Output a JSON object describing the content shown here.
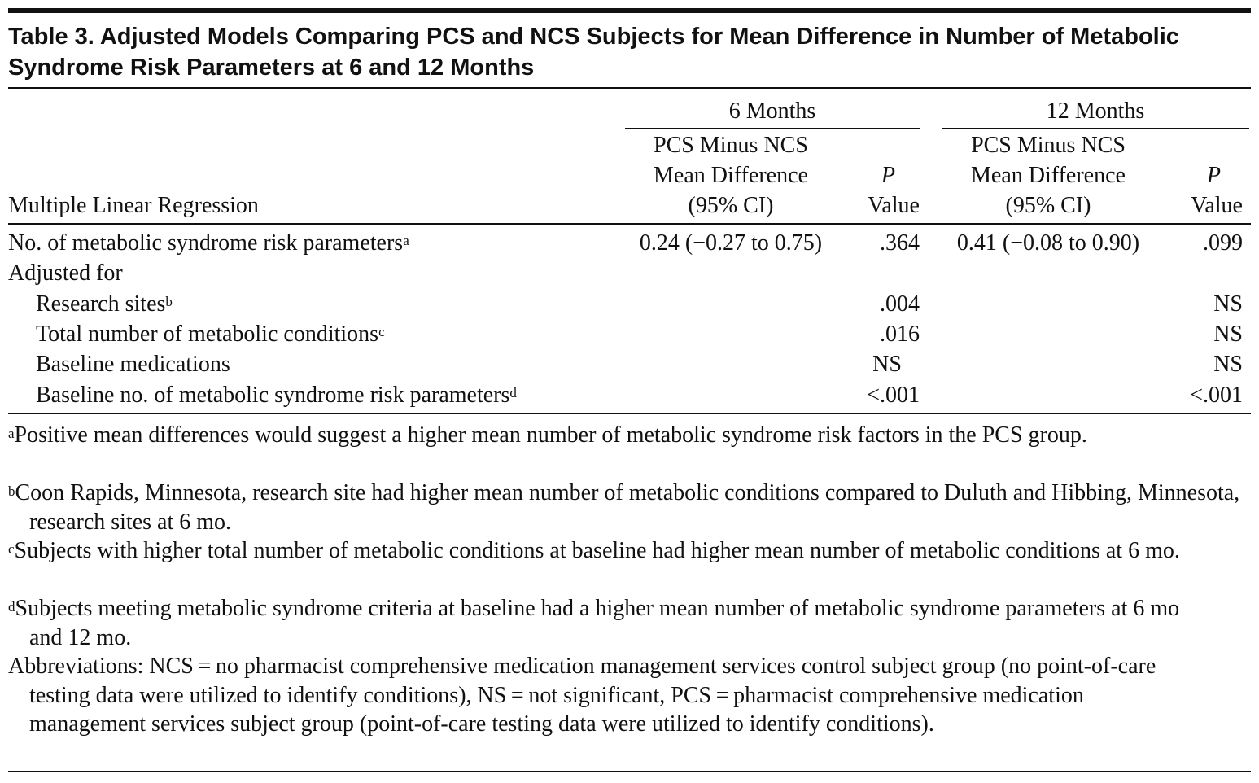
{
  "title": "Table 3. Adjusted Models Comparing PCS and NCS Subjects for Mean Difference in Number of Metabolic Syndrome Risk Parameters at 6 and 12 Months",
  "header": {
    "group_6": "6 Months",
    "group_12": "12 Months",
    "row_label": "Multiple Linear Regression",
    "diff_line1": "PCS Minus NCS",
    "diff_line2": "Mean Difference",
    "diff_line3": "(95% CI)",
    "p_line1": "P",
    "p_line2": "Value"
  },
  "rows": [
    {
      "label": "No. of metabolic syndrome risk parameters",
      "sup": "a",
      "diff6": "0.24 (−0.27 to 0.75)",
      "p6": ".364",
      "diff12": "0.41 (−0.08 to 0.90)",
      "p12": ".099"
    },
    {
      "label": "Adjusted for"
    },
    {
      "label": "Research sites",
      "sup": "b",
      "p6": ".004",
      "p12": "NS"
    },
    {
      "label": "Total number of metabolic conditions",
      "sup": "c",
      "p6": ".016",
      "p12": "NS"
    },
    {
      "label": "Baseline medications",
      "p6": "NS",
      "p12": "NS"
    },
    {
      "label": "Baseline no. of metabolic syndrome risk parameters",
      "sup": "d",
      "p6": "<.001",
      "p12": "<.001"
    }
  ],
  "footnotes": [
    {
      "mark": "a",
      "text": "Positive mean differences would suggest a higher mean number of metabolic syndrome risk factors in the PCS group."
    },
    {
      "mark": "b",
      "text": "Coon Rapids, Minnesota, research site had higher mean number of metabolic conditions compared to Duluth and Hibbing, Minnesota, research sites at 6 mo."
    },
    {
      "mark": "c",
      "text": "Subjects with higher total number of metabolic conditions at baseline had higher mean number of metabolic conditions at 6 mo."
    },
    {
      "mark": "d",
      "text": "Subjects meeting metabolic syndrome criteria at baseline had a higher mean number of metabolic syndrome parameters at 6 mo and 12 mo."
    }
  ],
  "abbreviations": "Abbreviations: NCS = no pharmacist comprehensive medication management services control subject group (no point-of-care testing data were utilized to identify conditions), NS = not significant, PCS = pharmacist comprehensive medication management services subject group (point-of-care testing data were utilized to identify conditions)."
}
